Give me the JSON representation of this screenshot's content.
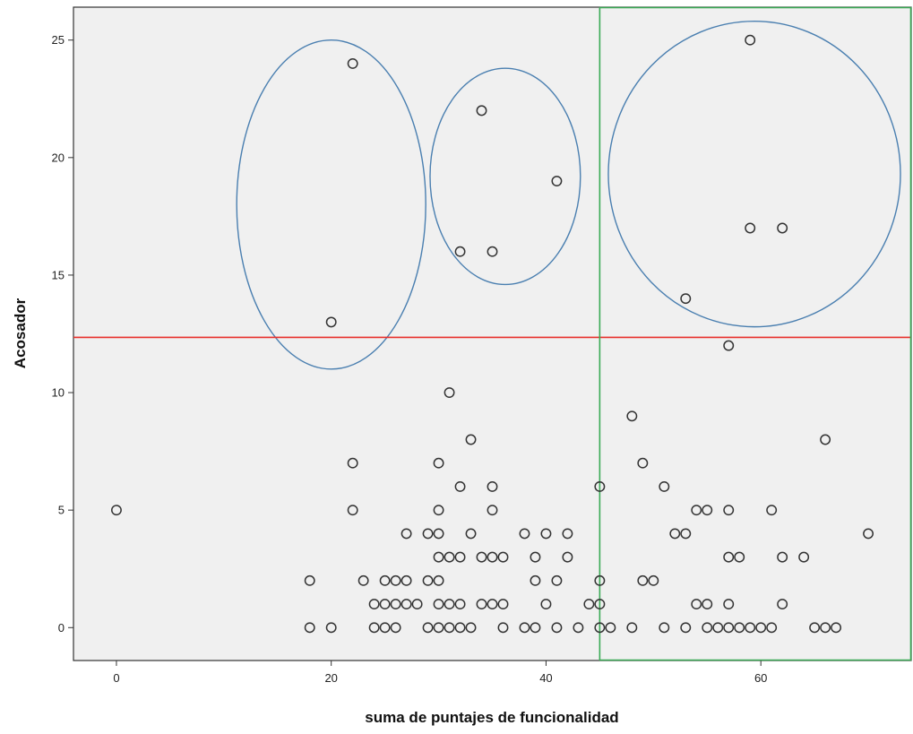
{
  "chart_data": {
    "type": "scatter",
    "xlabel": "suma de puntajes de funcionalidad",
    "ylabel": "Acosador",
    "xlim": [
      -4,
      74
    ],
    "ylim": [
      -1.4,
      26.4
    ],
    "xticks": [
      0,
      20,
      40,
      60
    ],
    "yticks": [
      0,
      5,
      10,
      15,
      20,
      25
    ],
    "grid": false,
    "plot_background": "#f0f0f0",
    "marker": "open-circle",
    "colors": {
      "marker": "#333333",
      "horizontal_line": "#e8302c",
      "vertical_line": "#3aaa55",
      "ellipses": "#4a7fb0"
    },
    "reference_lines": {
      "horizontal_y": 12.35,
      "vertical_x": 45
    },
    "ellipses": [
      {
        "cx": 20,
        "cy": 18.0,
        "rx": 8.8,
        "ry": 7.0
      },
      {
        "cx": 36.2,
        "cy": 19.2,
        "rx": 7.0,
        "ry": 4.6
      },
      {
        "cx": 59.4,
        "cy": 19.3,
        "rx": 13.6,
        "ry": 6.5
      }
    ],
    "points": [
      [
        0,
        5
      ],
      [
        18,
        2
      ],
      [
        18,
        0
      ],
      [
        20,
        0
      ],
      [
        20,
        13
      ],
      [
        22,
        24
      ],
      [
        22,
        7
      ],
      [
        22,
        5
      ],
      [
        23,
        2
      ],
      [
        24,
        0
      ],
      [
        24,
        1
      ],
      [
        25,
        2
      ],
      [
        25,
        1
      ],
      [
        25,
        0
      ],
      [
        26,
        2
      ],
      [
        26,
        1
      ],
      [
        26,
        0
      ],
      [
        27,
        4
      ],
      [
        27,
        2
      ],
      [
        27,
        1
      ],
      [
        28,
        1
      ],
      [
        29,
        4
      ],
      [
        29,
        2
      ],
      [
        29,
        0
      ],
      [
        30,
        5
      ],
      [
        30,
        7
      ],
      [
        30,
        4
      ],
      [
        30,
        3
      ],
      [
        30,
        2
      ],
      [
        30,
        1
      ],
      [
        30,
        0
      ],
      [
        31,
        3
      ],
      [
        31,
        1
      ],
      [
        31,
        0
      ],
      [
        31,
        10
      ],
      [
        32,
        6
      ],
      [
        32,
        3
      ],
      [
        32,
        1
      ],
      [
        32,
        0
      ],
      [
        32,
        16
      ],
      [
        33,
        8
      ],
      [
        33,
        4
      ],
      [
        33,
        0
      ],
      [
        34,
        22
      ],
      [
        34,
        3
      ],
      [
        34,
        1
      ],
      [
        35,
        16
      ],
      [
        35,
        6
      ],
      [
        35,
        5
      ],
      [
        35,
        3
      ],
      [
        35,
        1
      ],
      [
        36,
        3
      ],
      [
        36,
        1
      ],
      [
        36,
        0
      ],
      [
        38,
        4
      ],
      [
        38,
        0
      ],
      [
        39,
        3
      ],
      [
        39,
        2
      ],
      [
        39,
        0
      ],
      [
        40,
        4
      ],
      [
        40,
        1
      ],
      [
        41,
        19
      ],
      [
        41,
        2
      ],
      [
        41,
        0
      ],
      [
        42,
        4
      ],
      [
        42,
        3
      ],
      [
        43,
        0
      ],
      [
        44,
        1
      ],
      [
        45,
        6
      ],
      [
        45,
        2
      ],
      [
        45,
        1
      ],
      [
        45,
        0
      ],
      [
        46,
        0
      ],
      [
        48,
        9
      ],
      [
        48,
        0
      ],
      [
        49,
        7
      ],
      [
        49,
        2
      ],
      [
        50,
        2
      ],
      [
        51,
        6
      ],
      [
        51,
        0
      ],
      [
        52,
        4
      ],
      [
        53,
        14
      ],
      [
        53,
        4
      ],
      [
        53,
        0
      ],
      [
        54,
        5
      ],
      [
        54,
        1
      ],
      [
        55,
        5
      ],
      [
        55,
        1
      ],
      [
        55,
        0
      ],
      [
        56,
        0
      ],
      [
        57,
        12
      ],
      [
        57,
        5
      ],
      [
        57,
        3
      ],
      [
        57,
        1
      ],
      [
        57,
        0
      ],
      [
        58,
        3
      ],
      [
        58,
        0
      ],
      [
        59,
        25
      ],
      [
        59,
        17
      ],
      [
        59,
        0
      ],
      [
        60,
        0
      ],
      [
        61,
        5
      ],
      [
        61,
        0
      ],
      [
        62,
        17
      ],
      [
        62,
        3
      ],
      [
        62,
        1
      ],
      [
        64,
        3
      ],
      [
        65,
        0
      ],
      [
        66,
        8
      ],
      [
        66,
        0
      ],
      [
        67,
        0
      ],
      [
        70,
        4
      ]
    ]
  }
}
